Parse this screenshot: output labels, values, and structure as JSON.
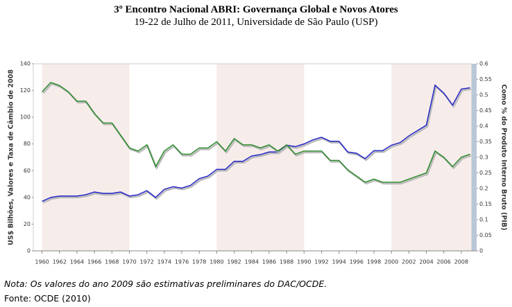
{
  "header": {
    "title": "3º Encontro Nacional ABRI: Governança Global e Novos Atores",
    "subtitle": "19-22 de Julho de 2011, Universidade de São Paulo (USP)"
  },
  "chart_data": {
    "type": "line",
    "y_label": "US$ Bilhões, Valores e Taxa de Câmbio de 2008",
    "y2_label": "Como % do Produto Interno Bruto (PIB)",
    "x": [
      1960,
      1961,
      1962,
      1963,
      1964,
      1965,
      1966,
      1967,
      1968,
      1969,
      1970,
      1971,
      1972,
      1973,
      1974,
      1975,
      1976,
      1977,
      1978,
      1979,
      1980,
      1981,
      1982,
      1983,
      1984,
      1985,
      1986,
      1987,
      1988,
      1989,
      1990,
      1991,
      1992,
      1993,
      1994,
      1995,
      1996,
      1997,
      1998,
      1999,
      2000,
      2001,
      2002,
      2003,
      2004,
      2005,
      2006,
      2007,
      2008,
      2009
    ],
    "xlim": [
      1959,
      2009.2
    ],
    "xticks": [
      1960,
      1962,
      1964,
      1966,
      1968,
      1970,
      1972,
      1974,
      1976,
      1978,
      1980,
      1982,
      1984,
      1986,
      1988,
      1990,
      1992,
      1994,
      1996,
      1998,
      2000,
      2002,
      2004,
      2006,
      2008
    ],
    "ylim": [
      0,
      140
    ],
    "yticks": [
      0,
      20,
      40,
      60,
      80,
      100,
      120,
      140
    ],
    "y2lim": [
      0,
      0.6
    ],
    "y2ticks": [
      0,
      0.05,
      0.1,
      0.15,
      0.2,
      0.25,
      0.3,
      0.35,
      0.4,
      0.45,
      0.5,
      0.55,
      0.6
    ],
    "series": [
      {
        "color": "#2c2cc8",
        "values": [
          37,
          40,
          41,
          41,
          41,
          42,
          44,
          43,
          43,
          44,
          41,
          42,
          45,
          40,
          46,
          48,
          47,
          49,
          54,
          56,
          61,
          61,
          67,
          67,
          71,
          72,
          74,
          74,
          79,
          78,
          80,
          83,
          85,
          82,
          82,
          74,
          73,
          69,
          75,
          75,
          79,
          81,
          86,
          90,
          94,
          124,
          118,
          109,
          121,
          122
        ]
      },
      {
        "color": "#2e8b2e",
        "axis": "y2",
        "values": [
          0.51,
          0.54,
          0.53,
          0.51,
          0.48,
          0.48,
          0.44,
          0.41,
          0.41,
          0.37,
          0.33,
          0.32,
          0.34,
          0.27,
          0.32,
          0.34,
          0.31,
          0.31,
          0.33,
          0.33,
          0.35,
          0.32,
          0.36,
          0.34,
          0.34,
          0.33,
          0.34,
          0.32,
          0.34,
          0.31,
          0.32,
          0.32,
          0.32,
          0.29,
          0.29,
          0.26,
          0.24,
          0.22,
          0.23,
          0.22,
          0.22,
          0.22,
          0.23,
          0.24,
          0.25,
          0.32,
          0.3,
          0.27,
          0.3,
          0.31
        ]
      }
    ]
  },
  "notes": {
    "note": "Nota: Os valores do ano 2009 são estimativas preliminares do DAC/OCDE.",
    "source": "Fonte: OCDE (2010)"
  }
}
